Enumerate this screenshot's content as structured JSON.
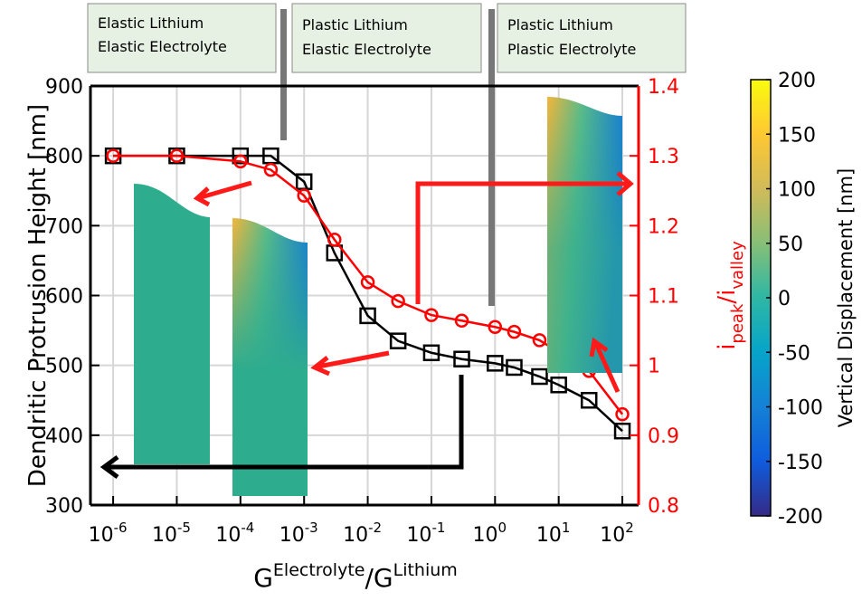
{
  "chart_data": {
    "type": "line",
    "xlabel": {
      "base": "G",
      "sup": "Electrolyte",
      "mid": "/G",
      "sup2": "Lithium"
    },
    "ylabel": "Dendritic Protrusion Height [nm]",
    "y2label": {
      "main": "i",
      "sub": "peak",
      "mid": "/i",
      "sub2": "valley"
    },
    "annotations": [
      [
        "Elastic Lithium",
        "Elastic Electrolyte"
      ],
      [
        "Plastic Lithium",
        "Elastic Electrolyte"
      ],
      [
        "Plastic Lithium",
        "Plastic Electrolyte"
      ]
    ],
    "xscale": "log",
    "grid": true,
    "xlim": [
      4.4e-07,
      180
    ],
    "xticks": [
      {
        "value": 1e-06,
        "base": "10",
        "exponent": "-6"
      },
      {
        "value": 1e-05,
        "base": "10",
        "exponent": "-5"
      },
      {
        "value": 0.0001,
        "base": "10",
        "exponent": "-4"
      },
      {
        "value": 0.001,
        "base": "10",
        "exponent": "-3"
      },
      {
        "value": 0.01,
        "base": "10",
        "exponent": "-2"
      },
      {
        "value": 0.1,
        "base": "10",
        "exponent": "-1"
      },
      {
        "value": 1,
        "base": "10",
        "exponent": "0"
      },
      {
        "value": 10,
        "base": "10",
        "exponent": "1"
      },
      {
        "value": 100,
        "base": "10",
        "exponent": "2"
      }
    ],
    "ylim": [
      300,
      900
    ],
    "yticks": [
      300,
      400,
      500,
      600,
      700,
      800,
      900
    ],
    "y2lim": [
      0.8,
      1.4
    ],
    "y2ticks": [
      0.8,
      0.9,
      1,
      1.1,
      1.2,
      1.3,
      1.4
    ],
    "y2color": "#ff0000",
    "series": [
      {
        "color": "#000000",
        "marker": "square",
        "x": [
          1e-06,
          1e-05,
          0.0001,
          0.0003,
          0.001,
          0.003,
          0.01,
          0.03,
          0.1,
          0.3,
          1,
          2,
          5,
          10,
          30,
          100
        ],
        "values": [
          800,
          800,
          800,
          800,
          763,
          661,
          571,
          535,
          518,
          509,
          503,
          497,
          484,
          472,
          450,
          406
        ]
      },
      {
        "color": "#ff0000",
        "marker": "circle",
        "axis": "y2",
        "x": [
          1e-06,
          1e-05,
          0.0001,
          0.0003,
          0.001,
          0.003,
          0.01,
          0.03,
          0.1,
          0.3,
          1,
          2,
          5,
          30,
          100
        ],
        "values": [
          1.3,
          1.3,
          1.292,
          1.28,
          1.243,
          1.18,
          1.119,
          1.092,
          1.072,
          1.064,
          1.055,
          1.048,
          1.036,
          0.992,
          0.93
        ]
      }
    ],
    "colorbar": {
      "label": "Vertical Displacement [nm]",
      "lim": [
        -200,
        200
      ],
      "ticks": [
        -200,
        -150,
        -100,
        -50,
        0,
        50,
        100,
        150,
        200
      ],
      "colors": [
        "#352a87",
        "#0f5cdd",
        "#1481d6",
        "#06a4ca",
        "#2eb7a4",
        "#87bf77",
        "#d1bb59",
        "#fec832",
        "#f9fb0e"
      ]
    }
  }
}
